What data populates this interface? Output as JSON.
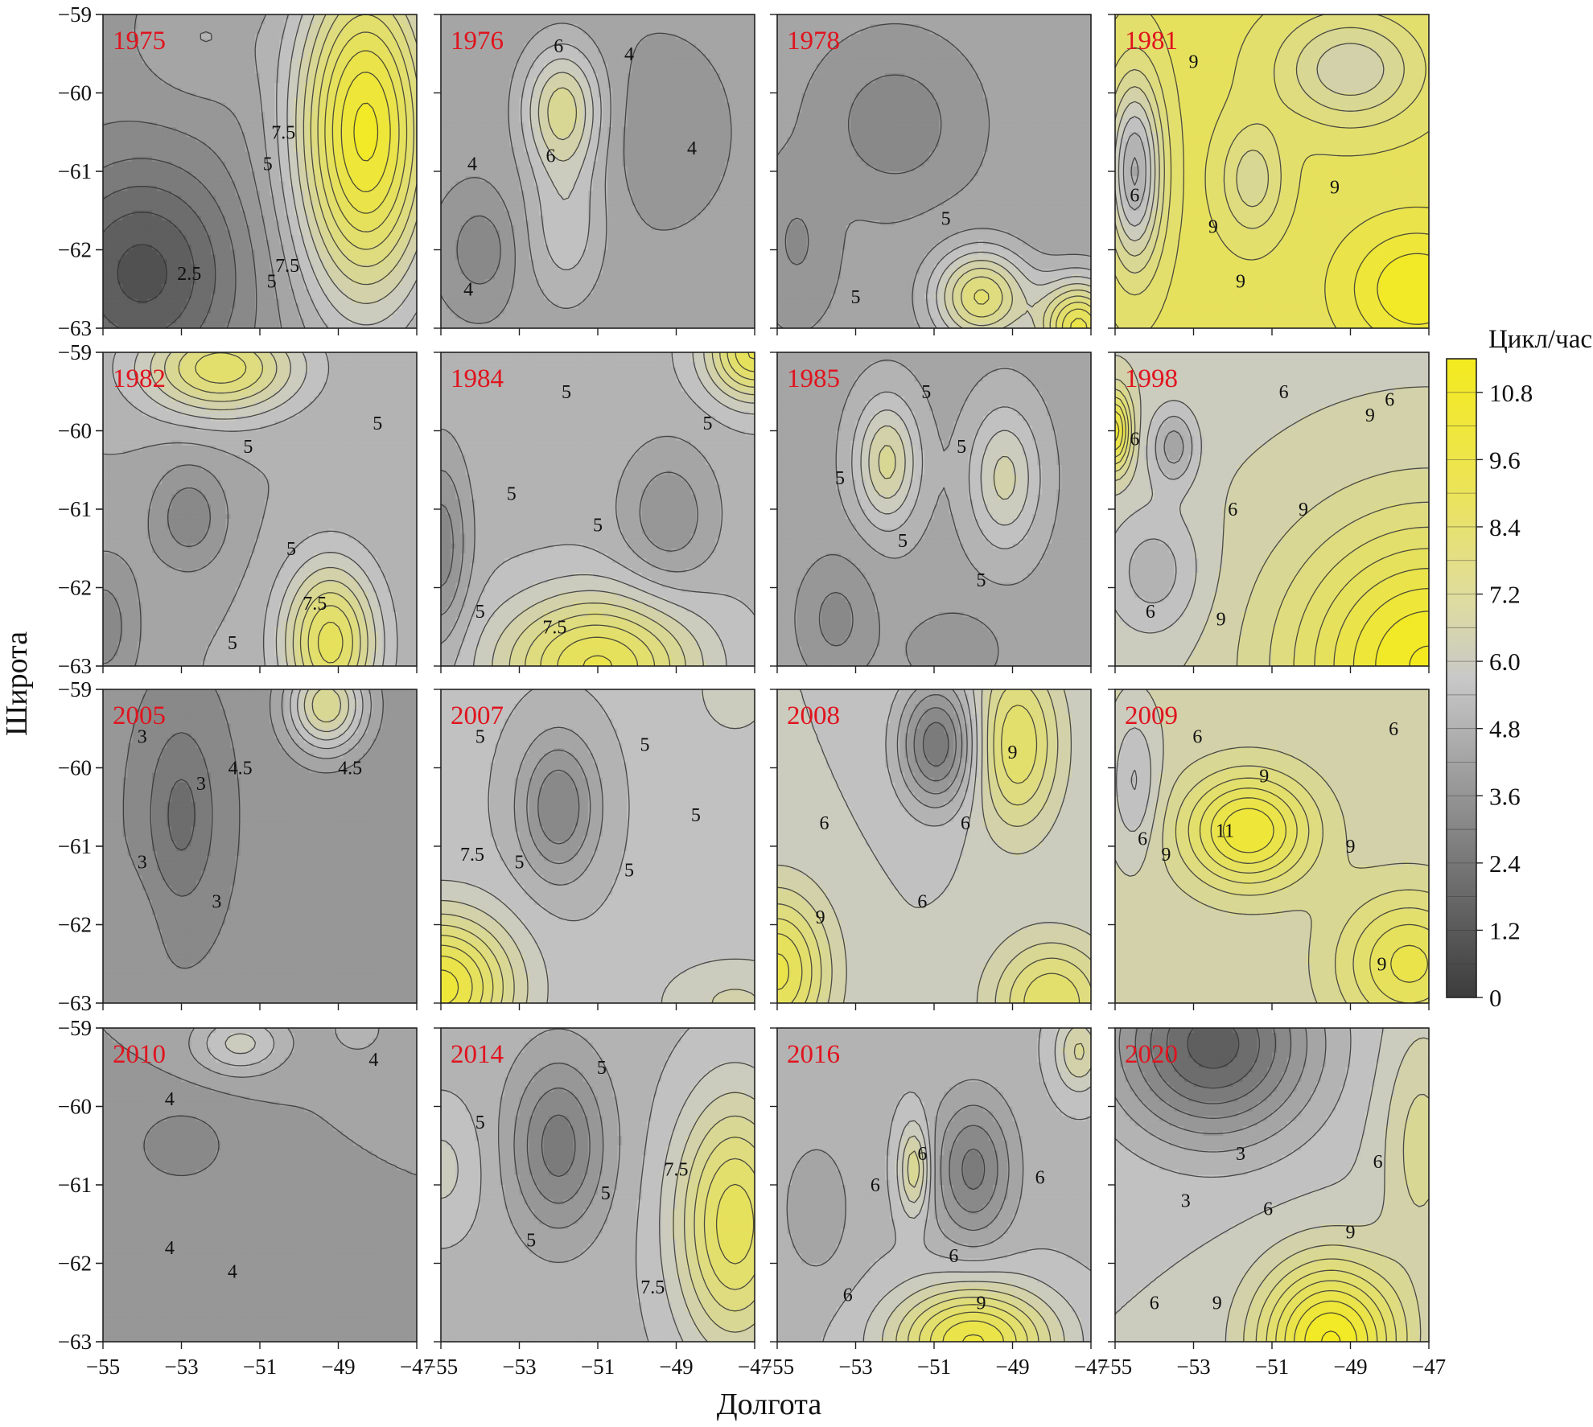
{
  "chart_data": {
    "type": "contour",
    "xlabel": "Долгота",
    "ylabel": "Широта",
    "x_ticks": [
      "−55",
      "−53",
      "−51",
      "−49",
      "−47"
    ],
    "y_ticks": [
      "−59",
      "−60",
      "−61",
      "−62",
      "−63"
    ],
    "xlim": [
      -55,
      -47
    ],
    "ylim": [
      -63,
      -59
    ],
    "colorbar": {
      "title": "Цикл/час",
      "ticks": [
        "10.8",
        "9.6",
        "8.4",
        "7.2",
        "6.0",
        "4.8",
        "3.6",
        "2.4",
        "1.2",
        "0"
      ],
      "range": [
        0,
        11.4
      ],
      "colors": {
        "low": "#3c3c3c",
        "mid": "#c4c4c4",
        "high": "#f4ea1e"
      }
    },
    "panels": [
      {
        "year": "1975",
        "base": 4.0,
        "centers": [
          [
            -48.3,
            -60.5,
            7.0,
            1.8,
            2.2
          ],
          [
            -54.0,
            -62.3,
            -3.0,
            2.4,
            1.4
          ],
          [
            -52.5,
            -59.3,
            0.8,
            1.5,
            0.8
          ]
        ],
        "labels": [
          [
            "7.5",
            -50.4,
            -60.5
          ],
          [
            "5",
            -50.8,
            -60.9
          ],
          [
            "2.5",
            -52.8,
            -62.3
          ],
          [
            "7.5",
            -50.3,
            -62.2
          ],
          [
            "5",
            -50.7,
            -62.4
          ]
        ]
      },
      {
        "year": "1976",
        "base": 4.3,
        "centers": [
          [
            -51.9,
            -60.2,
            3.2,
            1.0,
            0.8
          ],
          [
            -51.8,
            -61.7,
            1.5,
            1.0,
            1.0
          ],
          [
            -54.0,
            -62.0,
            -1.2,
            0.8,
            0.6
          ],
          [
            -49.5,
            -60.5,
            -0.5,
            1.5,
            1.0
          ]
        ],
        "labels": [
          [
            "6",
            -52.0,
            -59.4
          ],
          [
            "4",
            -50.2,
            -59.5
          ],
          [
            "6",
            -52.2,
            -60.8
          ],
          [
            "4",
            -54.2,
            -60.9
          ],
          [
            "4",
            -48.6,
            -60.7
          ],
          [
            "4",
            -54.3,
            -62.5
          ]
        ]
      },
      {
        "year": "1978",
        "base": 4.3,
        "centers": [
          [
            -49.8,
            -62.6,
            4.2,
            1.2,
            0.6
          ],
          [
            -47.3,
            -63.0,
            5.5,
            1.0,
            0.6
          ],
          [
            -52.0,
            -60.4,
            -1.3,
            1.5,
            0.8
          ],
          [
            -54.5,
            -61.9,
            -0.8,
            0.8,
            0.8
          ]
        ],
        "labels": [
          [
            "5",
            -50.7,
            -61.6
          ],
          [
            "5",
            -53.0,
            -62.6
          ]
        ]
      },
      {
        "year": "1981",
        "base": 9.2,
        "centers": [
          [
            -54.5,
            -61.0,
            -4.5,
            0.7,
            1.2
          ],
          [
            -49.0,
            -59.7,
            -2.5,
            1.8,
            0.7
          ],
          [
            -51.5,
            -61.1,
            -1.8,
            0.8,
            0.7
          ],
          [
            -47.3,
            -62.5,
            2.2,
            1.8,
            0.8
          ]
        ],
        "labels": [
          [
            "9",
            -53.0,
            -59.6
          ],
          [
            "6",
            -54.5,
            -61.3
          ],
          [
            "9",
            -52.5,
            -61.7
          ],
          [
            "9",
            -49.4,
            -61.2
          ],
          [
            "9",
            -51.8,
            -62.4
          ]
        ]
      },
      {
        "year": "1982",
        "base": 4.8,
        "centers": [
          [
            -52.0,
            -59.2,
            4.0,
            2.0,
            0.6
          ],
          [
            -49.2,
            -62.7,
            4.5,
            1.2,
            1.0
          ],
          [
            -52.8,
            -61.1,
            -1.6,
            1.0,
            0.7
          ],
          [
            -55.0,
            -62.5,
            -1.5,
            1.0,
            1.0
          ]
        ],
        "labels": [
          [
            "5",
            -48.0,
            -59.9
          ],
          [
            "5",
            -51.3,
            -60.2
          ],
          [
            "5",
            -50.2,
            -61.5
          ],
          [
            "7.5",
            -49.6,
            -62.2
          ],
          [
            "5",
            -51.7,
            -62.7
          ]
        ]
      },
      {
        "year": "1984",
        "base": 5.2,
        "centers": [
          [
            -51.0,
            -63.0,
            4.5,
            2.5,
            0.9
          ],
          [
            -47.0,
            -59.0,
            4.5,
            1.2,
            0.6
          ],
          [
            -49.2,
            -61.1,
            -1.5,
            1.2,
            0.9
          ],
          [
            -55.0,
            -61.5,
            -2.0,
            0.7,
            1.2
          ]
        ],
        "labels": [
          [
            "5",
            -51.8,
            -59.5
          ],
          [
            "5",
            -48.2,
            -59.9
          ],
          [
            "5",
            -53.2,
            -60.8
          ],
          [
            "5",
            -51.0,
            -61.2
          ],
          [
            "7.5",
            -52.1,
            -62.5
          ],
          [
            "5",
            -54.0,
            -62.3
          ]
        ]
      },
      {
        "year": "1985",
        "base": 4.6,
        "centers": [
          [
            -52.2,
            -60.4,
            2.8,
            0.8,
            0.8
          ],
          [
            -49.2,
            -60.6,
            2.2,
            0.9,
            0.9
          ],
          [
            -53.5,
            -62.4,
            -1.2,
            1.0,
            0.8
          ],
          [
            -50.5,
            -62.8,
            -1.0,
            1.2,
            0.5
          ]
        ],
        "labels": [
          [
            "5",
            -51.2,
            -59.5
          ],
          [
            "5",
            -53.4,
            -60.6
          ],
          [
            "5",
            -50.3,
            -60.2
          ],
          [
            "5",
            -51.8,
            -61.4
          ],
          [
            "5",
            -49.8,
            -61.9
          ]
        ]
      },
      {
        "year": "1998",
        "base": 6.5,
        "centers": [
          [
            -47.0,
            -63.0,
            5.0,
            3.5,
            1.8
          ],
          [
            -55.0,
            -60.0,
            4.0,
            0.4,
            0.5
          ],
          [
            -53.5,
            -60.2,
            -2.0,
            0.6,
            0.5
          ],
          [
            -54.0,
            -61.8,
            -1.5,
            1.2,
            0.8
          ]
        ],
        "labels": [
          [
            "6",
            -50.7,
            -59.5
          ],
          [
            "6",
            -48.0,
            -59.6
          ],
          [
            "9",
            -48.5,
            -59.8
          ],
          [
            "6",
            -54.5,
            -60.1
          ],
          [
            "6",
            -52.0,
            -61.0
          ],
          [
            "9",
            -50.2,
            -61.0
          ],
          [
            "6",
            -54.1,
            -62.3
          ],
          [
            "9",
            -52.3,
            -62.4
          ]
        ]
      },
      {
        "year": "2005",
        "base": 3.7,
        "centers": [
          [
            -53.0,
            -60.6,
            -1.5,
            0.9,
            1.2
          ],
          [
            -49.3,
            -59.2,
            4.0,
            1.0,
            0.6
          ],
          [
            -54.5,
            -62.0,
            0.5,
            0.8,
            0.6
          ]
        ],
        "labels": [
          [
            "3",
            -54.0,
            -59.6
          ],
          [
            "3",
            -52.5,
            -60.2
          ],
          [
            "4.5",
            -51.5,
            -60.0
          ],
          [
            "4.5",
            -48.7,
            -60.0
          ],
          [
            "3",
            -54.0,
            -61.2
          ],
          [
            "3",
            -52.1,
            -61.7
          ]
        ]
      },
      {
        "year": "2007",
        "base": 5.5,
        "centers": [
          [
            -52.0,
            -60.5,
            -2.5,
            1.0,
            0.9
          ],
          [
            -55.0,
            -62.8,
            5.0,
            1.8,
            0.9
          ],
          [
            -47.5,
            -63.0,
            1.2,
            2.0,
            0.6
          ],
          [
            -47.5,
            -59.0,
            1.0,
            1.0,
            0.6
          ]
        ],
        "labels": [
          [
            "5",
            -54.0,
            -59.6
          ],
          [
            "5",
            -49.8,
            -59.7
          ],
          [
            "5",
            -48.5,
            -60.6
          ],
          [
            "7.5",
            -54.2,
            -61.1
          ],
          [
            "5",
            -53.0,
            -61.2
          ],
          [
            "5",
            -50.2,
            -61.3
          ]
        ]
      },
      {
        "year": "2008",
        "base": 6.0,
        "centers": [
          [
            -50.9,
            -59.7,
            -3.5,
            1.0,
            0.8
          ],
          [
            -48.9,
            -59.7,
            3.0,
            1.1,
            1.1
          ],
          [
            -55.0,
            -62.6,
            3.8,
            1.3,
            1.0
          ],
          [
            -48.0,
            -63.0,
            3.0,
            1.5,
            0.8
          ]
        ],
        "labels": [
          [
            "9",
            -49.0,
            -59.8
          ],
          [
            "6",
            -53.8,
            -60.7
          ],
          [
            "6",
            -50.2,
            -60.7
          ],
          [
            "9",
            -53.9,
            -61.9
          ],
          [
            "6",
            -51.3,
            -61.7
          ]
        ]
      },
      {
        "year": "2009",
        "base": 6.8,
        "centers": [
          [
            -51.6,
            -60.8,
            4.0,
            1.6,
            0.7
          ],
          [
            -47.5,
            -62.5,
            3.0,
            1.8,
            0.9
          ],
          [
            -54.5,
            -60.2,
            -1.5,
            0.6,
            0.9
          ]
        ],
        "labels": [
          [
            "6",
            -52.9,
            -59.6
          ],
          [
            "6",
            -47.9,
            -59.5
          ],
          [
            "9",
            -51.2,
            -60.1
          ],
          [
            "6",
            -54.3,
            -60.9
          ],
          [
            "11",
            -52.2,
            -60.8
          ],
          [
            "9",
            -53.7,
            -61.1
          ],
          [
            "9",
            -49.0,
            -61.0
          ],
          [
            "9",
            -48.2,
            -62.5
          ]
        ]
      },
      {
        "year": "2010",
        "base": 4.2,
        "centers": [
          [
            -53.0,
            -60.5,
            -0.9,
            1.5,
            0.6
          ],
          [
            -51.5,
            -59.2,
            2.0,
            1.2,
            0.4
          ],
          [
            -48.5,
            -59.0,
            0.8,
            1.0,
            0.5
          ]
        ],
        "labels": [
          [
            "4",
            -53.3,
            -59.9
          ],
          [
            "4",
            -48.1,
            -59.4
          ],
          [
            "4",
            -53.3,
            -61.8
          ],
          [
            "4",
            -51.7,
            -62.1
          ]
        ]
      },
      {
        "year": "2014",
        "base": 5.2,
        "centers": [
          [
            -52.0,
            -60.5,
            -2.5,
            1.2,
            1.1
          ],
          [
            -47.5,
            -61.5,
            4.2,
            1.5,
            1.6
          ],
          [
            -55.0,
            -60.8,
            1.0,
            1.0,
            0.8
          ]
        ],
        "labels": [
          [
            "5",
            -50.9,
            -59.5
          ],
          [
            "5",
            -54.0,
            -60.2
          ],
          [
            "7.5",
            -49.0,
            -60.8
          ],
          [
            "5",
            -50.8,
            -61.1
          ],
          [
            "5",
            -52.7,
            -61.7
          ],
          [
            "7.5",
            -49.6,
            -62.3
          ]
        ]
      },
      {
        "year": "2016",
        "base": 5.3,
        "centers": [
          [
            -50.0,
            -60.8,
            -2.5,
            1.0,
            0.9
          ],
          [
            -50.0,
            -63.0,
            5.0,
            2.0,
            0.7
          ],
          [
            -54.0,
            -61.3,
            -1.0,
            0.9,
            0.9
          ],
          [
            -51.5,
            -60.8,
            2.5,
            0.4,
            0.6
          ],
          [
            -47.3,
            -59.3,
            2.0,
            0.6,
            0.5
          ]
        ],
        "labels": [
          [
            "6",
            -51.3,
            -60.6
          ],
          [
            "6",
            -52.5,
            -61.0
          ],
          [
            "6",
            -48.3,
            -60.9
          ],
          [
            "6",
            -50.5,
            -61.9
          ],
          [
            "6",
            -53.2,
            -62.4
          ],
          [
            "9",
            -49.8,
            -62.5
          ]
        ]
      },
      {
        "year": "2020",
        "base": 6.0,
        "centers": [
          [
            -52.5,
            -59.2,
            -4.5,
            2.5,
            1.2
          ],
          [
            -49.5,
            -63.0,
            5.5,
            1.8,
            1.0
          ],
          [
            -47.2,
            -60.5,
            1.5,
            1.0,
            1.5
          ]
        ],
        "labels": [
          [
            "3",
            -51.8,
            -60.6
          ],
          [
            "6",
            -48.3,
            -60.7
          ],
          [
            "3",
            -53.2,
            -61.2
          ],
          [
            "6",
            -51.1,
            -61.3
          ],
          [
            "9",
            -49.0,
            -61.6
          ],
          [
            "6",
            -54.0,
            -62.5
          ],
          [
            "9",
            -52.4,
            -62.5
          ]
        ]
      }
    ]
  }
}
